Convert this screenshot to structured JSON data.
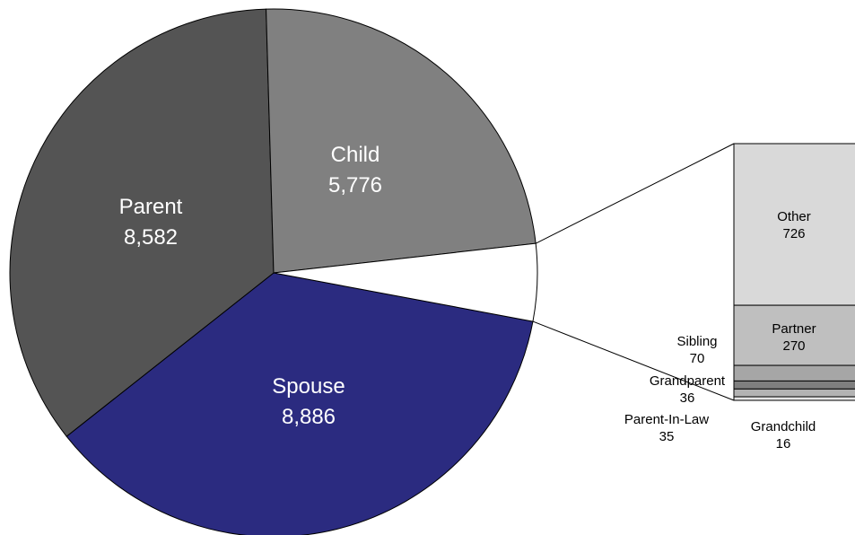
{
  "chart_data": {
    "type": "pie",
    "variant": "bar-of-pie",
    "slices": [
      {
        "label": "Spouse",
        "value": 8886,
        "value_text": "8,886",
        "color": "#2b2b80"
      },
      {
        "label": "Parent",
        "value": 8582,
        "value_text": "8,582",
        "color": "#545454"
      },
      {
        "label": "Child",
        "value": 5776,
        "value_text": "5,776",
        "color": "#808080"
      },
      {
        "label": "",
        "value": 1153,
        "value_text": "",
        "color": "#ffffff"
      }
    ],
    "secondary_bar": [
      {
        "label": "Other",
        "value": 726,
        "value_text": "726",
        "color": "#d9d9d9"
      },
      {
        "label": "Partner",
        "value": 270,
        "value_text": "270",
        "color": "#bfbfbf"
      },
      {
        "label": "Sibling",
        "value": 70,
        "value_text": "70",
        "color": "#a6a6a6"
      },
      {
        "label": "Grandparent",
        "value": 36,
        "value_text": "36",
        "color": "#7f7f7f"
      },
      {
        "label": "Parent-In-Law",
        "value": 35,
        "value_text": "35",
        "color": "#b3b3b3"
      },
      {
        "label": "Grandchild",
        "value": 16,
        "value_text": "16",
        "color": "#e6e6e6"
      }
    ],
    "legend": "none"
  }
}
